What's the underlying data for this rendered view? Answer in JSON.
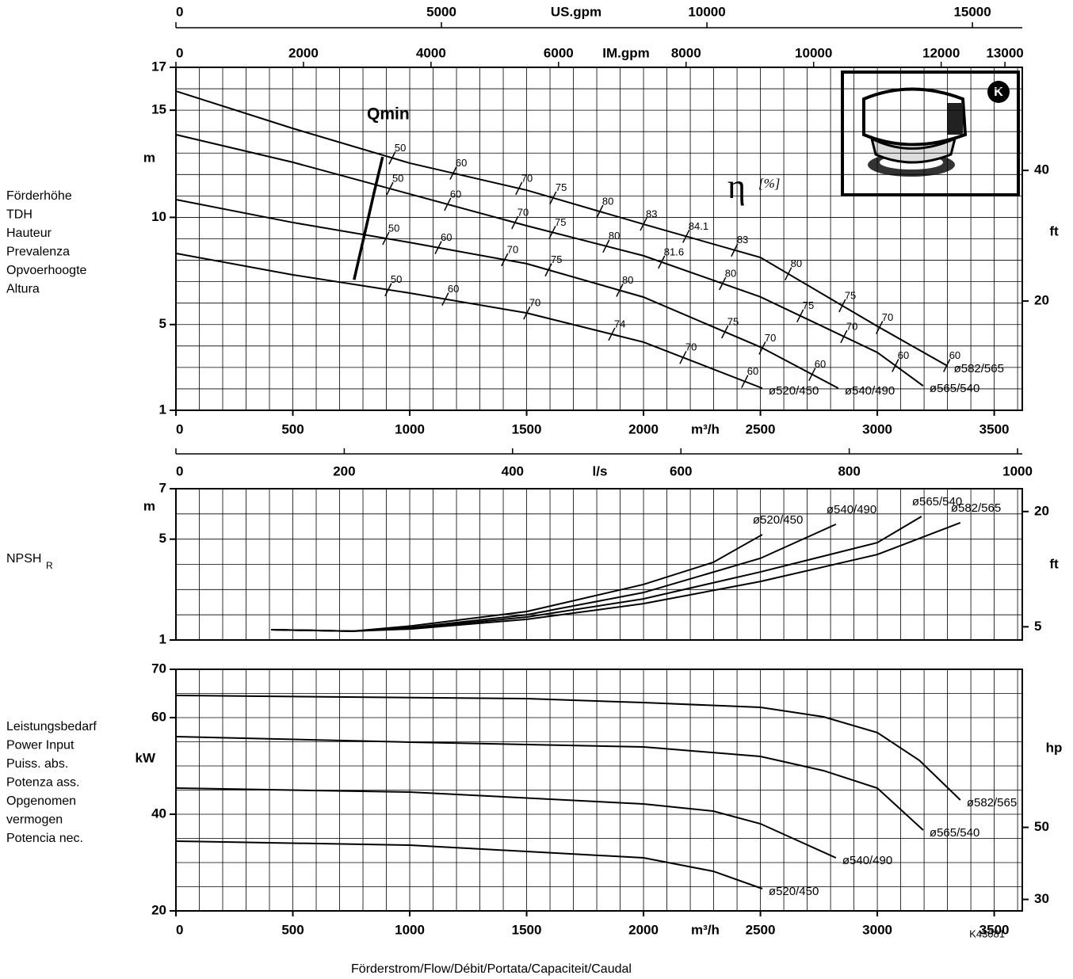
{
  "chart_data": [
    {
      "type": "line",
      "ylabel": [
        "Förderhöhe",
        "TDH",
        "Hauteur",
        "Prevalenza",
        "Opvoerhoogte",
        "Altura"
      ],
      "y_unit": "m",
      "y2_unit": "ft",
      "x_unit": "m³/h",
      "xlim": [
        0,
        3620
      ],
      "xticks": [
        0,
        500,
        1000,
        1500,
        2000,
        2500,
        3000,
        3500
      ],
      "xgrid": [
        0,
        100,
        200,
        300,
        400,
        500,
        600,
        700,
        800,
        900,
        1000,
        1100,
        1200,
        1300,
        1400,
        1500,
        1600,
        1700,
        1800,
        1900,
        2000,
        2100,
        2200,
        2300,
        2400,
        2500,
        2600,
        2700,
        2800,
        2900,
        3000,
        3100,
        3200,
        3300,
        3400,
        3500,
        3600
      ],
      "ylim": [
        1,
        17
      ],
      "yticks": [
        1,
        5,
        10,
        15,
        17
      ],
      "ygrid": [
        1,
        2,
        3,
        4,
        5,
        6,
        7,
        8,
        9,
        10,
        11,
        12,
        13,
        14,
        15,
        16,
        17
      ],
      "y2lim": [
        3.281,
        55.78
      ],
      "y2ticks": [
        20,
        40
      ],
      "us_gpm_axis": {
        "label": "US.gpm",
        "lim": [
          0,
          15939
        ],
        "ticks": [
          0,
          5000,
          10000,
          15000
        ]
      },
      "im_gpm_axis": {
        "label": "IM.gpm",
        "lim": [
          0,
          13272
        ],
        "ticks": [
          0,
          2000,
          4000,
          6000,
          8000,
          10000,
          12000,
          13000
        ]
      },
      "efficiency_label": "η",
      "efficiency_unit": "[%]",
      "qmin": {
        "label": "Qmin",
        "x": [
          884,
          850,
          762
        ],
        "values": [
          12.82,
          11.27,
          7.09
        ]
      },
      "series": [
        {
          "name": "ø582/565",
          "color": "#000000",
          "x": [
            0,
            500,
            1000,
            1500,
            2000,
            2500,
            3000,
            3300
          ],
          "values": [
            15.89,
            14.15,
            12.53,
            11.27,
            9.68,
            8.13,
            4.92,
            3.07
          ],
          "efficiency": [
            {
              "x": 925,
              "eta": 50
            },
            {
              "x": 1186,
              "eta": 60
            },
            {
              "x": 1467,
              "eta": 70
            },
            {
              "x": 1613,
              "eta": 75
            },
            {
              "x": 1813,
              "eta": 80
            },
            {
              "x": 2000,
              "eta": 83
            },
            {
              "x": 2182,
              "eta": 84.1
            },
            {
              "x": 2389,
              "eta": 83
            },
            {
              "x": 2619,
              "eta": 80
            },
            {
              "x": 2850,
              "eta": 75
            },
            {
              "x": 3009,
              "eta": 70
            },
            {
              "x": 3297,
              "eta": 60
            }
          ]
        },
        {
          "name": "ø565/540",
          "color": "#000000",
          "x": [
            0,
            500,
            1000,
            1500,
            2000,
            2500,
            3000,
            3196
          ],
          "values": [
            13.86,
            12.57,
            11.09,
            9.61,
            8.21,
            6.29,
            3.7,
            2.14
          ],
          "efficiency": [
            {
              "x": 915,
              "eta": 50
            },
            {
              "x": 1162,
              "eta": 60
            },
            {
              "x": 1450,
              "eta": 70
            },
            {
              "x": 1610,
              "eta": 75
            },
            {
              "x": 1840,
              "eta": 80
            },
            {
              "x": 2077,
              "eta": 81.6
            },
            {
              "x": 2338,
              "eta": 80
            },
            {
              "x": 2670,
              "eta": 75
            },
            {
              "x": 2857,
              "eta": 70
            },
            {
              "x": 3077,
              "eta": 60
            }
          ]
        },
        {
          "name": "ø540/490",
          "color": "#000000",
          "x": [
            0,
            500,
            1000,
            1500,
            2000,
            2500,
            2833
          ],
          "values": [
            10.83,
            9.76,
            8.83,
            7.84,
            6.28,
            3.95,
            2.03
          ],
          "efficiency": [
            {
              "x": 898,
              "eta": 50
            },
            {
              "x": 1122,
              "eta": 60
            },
            {
              "x": 1406,
              "eta": 70
            },
            {
              "x": 1593,
              "eta": 75
            },
            {
              "x": 1898,
              "eta": 80
            },
            {
              "x": 2348,
              "eta": 75
            },
            {
              "x": 2508,
              "eta": 70
            },
            {
              "x": 2721,
              "eta": 60
            }
          ]
        },
        {
          "name": "ø520/450",
          "color": "#000000",
          "x": [
            0,
            500,
            1000,
            1500,
            2000,
            2508
          ],
          "values": [
            8.32,
            7.32,
            6.47,
            5.54,
            4.18,
            2.03
          ],
          "efficiency": [
            {
              "x": 908,
              "eta": 50
            },
            {
              "x": 1152,
              "eta": 60
            },
            {
              "x": 1501,
              "eta": 70
            },
            {
              "x": 1864,
              "eta": 74
            },
            {
              "x": 2169,
              "eta": 70
            },
            {
              "x": 2433,
              "eta": 60
            }
          ]
        }
      ]
    },
    {
      "type": "line",
      "ylabel": "NPSH",
      "ylabel_sub": "R",
      "y_unit": "m",
      "y2_unit": "ft",
      "xlim": [
        0,
        3620
      ],
      "xgrid": [
        0,
        100,
        200,
        300,
        400,
        500,
        600,
        700,
        800,
        900,
        1000,
        1100,
        1200,
        1300,
        1400,
        1500,
        1600,
        1700,
        1800,
        1900,
        2000,
        2100,
        2200,
        2300,
        2400,
        2500,
        2600,
        2700,
        2800,
        2900,
        3000,
        3100,
        3200,
        3300,
        3400,
        3500,
        3600
      ],
      "ylim": [
        1,
        7
      ],
      "yticks": [
        1,
        5,
        7
      ],
      "ygrid": [
        1,
        2,
        3,
        4,
        5,
        6,
        7
      ],
      "y2lim": [
        3.281,
        22.97
      ],
      "y2ticks": [
        5,
        20
      ],
      "ls_axis": {
        "label": "l/s",
        "lim": [
          0,
          1005.6
        ],
        "ticks": [
          0,
          200,
          400,
          600,
          800,
          1000
        ]
      },
      "series": [
        {
          "name": "ø520/450",
          "color": "#000000",
          "x": [
            407,
            756,
            1010,
            1501,
            1999,
            2298,
            2508
          ],
          "values": [
            1.41,
            1.35,
            1.56,
            2.13,
            3.2,
            4.08,
            5.18
          ]
        },
        {
          "name": "ø540/490",
          "color": "#000000",
          "x": [
            407,
            756,
            1010,
            1501,
            1999,
            2500,
            2823
          ],
          "values": [
            1.41,
            1.35,
            1.5,
            2.0,
            2.88,
            4.24,
            5.59
          ]
        },
        {
          "name": "ø565/540",
          "color": "#000000",
          "x": [
            407,
            756,
            1010,
            1501,
            1999,
            2500,
            3000,
            3189
          ],
          "values": [
            1.41,
            1.35,
            1.47,
            1.91,
            2.63,
            3.7,
            4.86,
            5.9
          ]
        },
        {
          "name": "ø582/565",
          "color": "#000000",
          "x": [
            407,
            756,
            1010,
            1501,
            1999,
            2500,
            3000,
            3355
          ],
          "values": [
            1.41,
            1.35,
            1.44,
            1.82,
            2.44,
            3.32,
            4.39,
            5.65
          ]
        }
      ]
    },
    {
      "type": "line",
      "ylabel": [
        "Leistungsbedarf",
        "Power Input",
        "Puiss. abs.",
        "Potenza ass.",
        "Opgenomen",
        "vermogen",
        "Potencia nec."
      ],
      "y_unit": "kW",
      "y2_unit": "hp",
      "x_unit": "m³/h",
      "xlim": [
        0,
        3620
      ],
      "xticks": [
        0,
        500,
        1000,
        1500,
        2000,
        2500,
        3000,
        3500
      ],
      "xgrid": [
        0,
        100,
        200,
        300,
        400,
        500,
        600,
        700,
        800,
        900,
        1000,
        1100,
        1200,
        1300,
        1400,
        1500,
        1600,
        1700,
        1800,
        1900,
        2000,
        2100,
        2200,
        2300,
        2400,
        2500,
        2600,
        2700,
        2800,
        2900,
        3000,
        3100,
        3200,
        3300,
        3400,
        3500,
        3600
      ],
      "ylim": [
        20,
        70
      ],
      "yticks": [
        20,
        40,
        60,
        70
      ],
      "ygrid": [
        20,
        25,
        30,
        35,
        40,
        45,
        50,
        55,
        60,
        65,
        70
      ],
      "y2lim": [
        26.82,
        93.87
      ],
      "y2ticks": [
        30,
        50
      ],
      "series": [
        {
          "name": "ø582/565",
          "color": "#000000",
          "x": [
            0,
            1500,
            2000,
            2500,
            2770,
            3000,
            3180,
            3355
          ],
          "values": [
            64.59,
            63.93,
            63.11,
            62.13,
            60.16,
            56.89,
            51.15,
            42.95
          ]
        },
        {
          "name": "ø565/540",
          "color": "#000000",
          "x": [
            0,
            1000,
            2000,
            2500,
            2770,
            3000,
            3196
          ],
          "values": [
            56.07,
            54.92,
            53.93,
            51.97,
            49.02,
            45.41,
            36.72
          ]
        },
        {
          "name": "ø540/490",
          "color": "#000000",
          "x": [
            0,
            1000,
            2000,
            2298,
            2500,
            2823
          ],
          "values": [
            45.41,
            44.59,
            42.13,
            40.66,
            38.03,
            30.98
          ]
        },
        {
          "name": "ø520/450",
          "color": "#000000",
          "x": [
            0,
            1000,
            2000,
            2298,
            2508
          ],
          "values": [
            34.43,
            33.61,
            30.98,
            28.2,
            24.59
          ]
        }
      ]
    }
  ],
  "xlabel": "Förderstrom/Flow/Débit/Portata/Capaciteit/Caudal",
  "code": "K43081",
  "inset_badge": "K"
}
